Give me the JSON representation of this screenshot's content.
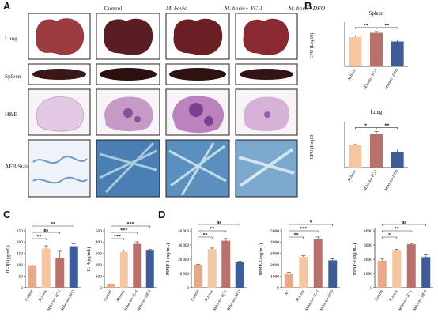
{
  "panels": {
    "A": "A",
    "B": "B",
    "C": "C",
    "D": "D"
  },
  "groups": [
    "Control",
    "M. bovis",
    "M. bovis+ YC-1",
    "M. bovis+DFO"
  ],
  "rows": [
    "Lung",
    "Spleen",
    "H&E",
    "AFB Stain"
  ],
  "colors": {
    "control": "#e8a98a",
    "mbovis": "#f4c7a2",
    "yc1": "#b9726b",
    "dfo": "#3d5c98",
    "lung": "#7a2228",
    "spleen": "#3b1616",
    "he_bg": "#efe4ef",
    "he_tissue": "#c59ac6",
    "afb_bg": "#d7e6f0",
    "afb_stain": "#4d84b6"
  },
  "chart_data": [
    {
      "id": "spleen",
      "type": "bar",
      "title": "Spleen",
      "ylabel": "CFU (Log10)",
      "categories": [
        "M.bovis",
        "M.bovis+YC-1",
        "M.bovis+DFO"
      ],
      "values": [
        4.35,
        4.55,
        4.15
      ],
      "errors": [
        0.05,
        0.06,
        0.07
      ],
      "ylim": [
        3.0,
        4.9
      ],
      "sig": [
        {
          "a": 0,
          "b": 1,
          "label": "**"
        },
        {
          "a": 1,
          "b": 2,
          "label": "**"
        }
      ]
    },
    {
      "id": "lung",
      "type": "bar",
      "title": "Lung",
      "ylabel": "CFU (Log10)",
      "categories": [
        "M.bovis",
        "M.bovis+YC-1",
        "M.bovis+DFO"
      ],
      "values": [
        5.35,
        6.05,
        4.95
      ],
      "errors": [
        0.05,
        0.15,
        0.18
      ],
      "ylim": [
        4.0,
        6.6
      ],
      "sig": [
        {
          "a": 0,
          "b": 1,
          "label": "*"
        },
        {
          "a": 1,
          "b": 2,
          "label": "**"
        }
      ]
    },
    {
      "id": "il1b",
      "type": "bar",
      "ylabel": "IL-1β (pg/mL)",
      "categories": [
        "Control",
        "M.bovis",
        "M.bovis+YC-1",
        "M.bovis+DFO"
      ],
      "values": [
        95,
        172,
        130,
        182
      ],
      "errors": [
        4,
        12,
        30,
        10
      ],
      "yticks": [
        0,
        50,
        100,
        150,
        200,
        250
      ],
      "ylim": [
        0,
        250
      ],
      "sig": [
        {
          "a": 0,
          "b": 1,
          "label": "**"
        },
        {
          "a": 0,
          "b": 2,
          "label": "ns"
        },
        {
          "a": 0,
          "b": 3,
          "label": "**"
        }
      ]
    },
    {
      "id": "il4",
      "type": "bar",
      "ylabel": "IL-4(pg/mL)",
      "categories": [
        "Control",
        "M.bovis",
        "M.bovis+YC-1",
        "M.bovis+DFO"
      ],
      "values": [
        30,
        315,
        385,
        325
      ],
      "errors": [
        3,
        15,
        18,
        10
      ],
      "yticks": [
        0,
        100,
        200,
        300,
        400,
        500
      ],
      "ylim": [
        0,
        500
      ],
      "sig": [
        {
          "a": 0,
          "b": 1,
          "label": "***"
        },
        {
          "a": 0,
          "b": 2,
          "label": "***"
        },
        {
          "a": 0,
          "b": 3,
          "label": "***"
        }
      ]
    },
    {
      "id": "mmp1",
      "type": "bar",
      "ylabel": "MMP-1 (ng/mL)",
      "categories": [
        "Control",
        "M.bovis",
        "M.bovis+YC-1",
        "M.bovis+DFO"
      ],
      "values": [
        16000,
        27000,
        33000,
        18000
      ],
      "errors": [
        500,
        800,
        1500,
        700
      ],
      "yticks": [
        0,
        10000,
        20000,
        30000,
        40000
      ],
      "yticklabels": [
        "0",
        "10 000",
        "20 000",
        "30 000",
        "40 000"
      ],
      "ylim": [
        0,
        40000
      ],
      "sig": [
        {
          "a": 0,
          "b": 1,
          "label": "**"
        },
        {
          "a": 0,
          "b": 2,
          "label": "**"
        },
        {
          "a": 0,
          "b": 3,
          "label": "ns"
        }
      ]
    },
    {
      "id": "mmp3",
      "type": "bar",
      "ylabel": "MMP-3 (ng/mL)",
      "categories": [
        "NC",
        "M.bovis",
        "M.bovis+YC-1",
        "M.bovis+DFO"
      ],
      "values": [
        1200,
        2700,
        4300,
        2400
      ],
      "errors": [
        150,
        100,
        150,
        150
      ],
      "yticks": [
        0,
        1000,
        2000,
        3000,
        4000,
        5000
      ],
      "ylim": [
        0,
        5000
      ],
      "sig": [
        {
          "a": 0,
          "b": 1,
          "label": "**"
        },
        {
          "a": 0,
          "b": 2,
          "label": "***"
        },
        {
          "a": 0,
          "b": 3,
          "label": "*"
        }
      ]
    },
    {
      "id": "mmp9",
      "type": "bar",
      "ylabel": "MMP-9 (ng/mL)",
      "categories": [
        "Control",
        "M.bovis",
        "M.bovis+YC-1",
        "M.bovis+DFO"
      ],
      "values": [
        1900,
        2600,
        3050,
        2150
      ],
      "errors": [
        150,
        100,
        60,
        150
      ],
      "yticks": [
        0,
        1000,
        2000,
        3000,
        4000
      ],
      "ylim": [
        0,
        4000
      ],
      "sig": [
        {
          "a": 0,
          "b": 1,
          "label": "*"
        },
        {
          "a": 0,
          "b": 2,
          "label": "**"
        },
        {
          "a": 0,
          "b": 3,
          "label": "ns"
        }
      ]
    }
  ]
}
